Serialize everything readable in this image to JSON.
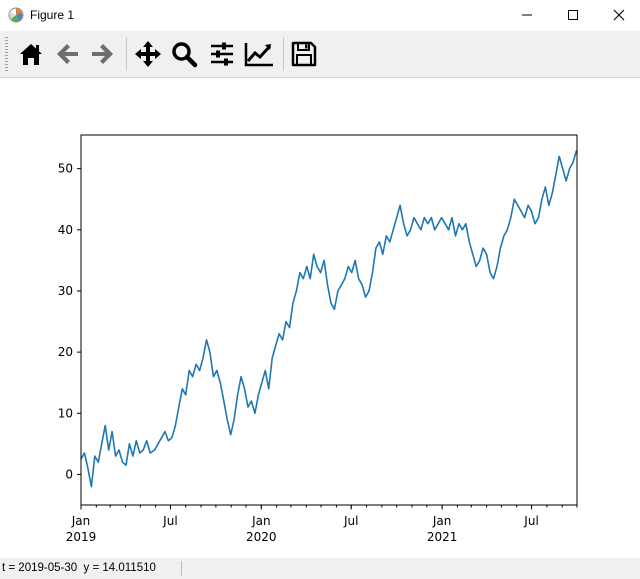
{
  "window": {
    "title": "Figure 1"
  },
  "toolbar": {
    "buttons": [
      {
        "name": "home-button",
        "icon": "home-icon"
      },
      {
        "name": "back-button",
        "icon": "arrow-left-icon"
      },
      {
        "name": "forward-button",
        "icon": "arrow-right-icon"
      },
      {
        "name": "pan-button",
        "icon": "move-icon"
      },
      {
        "name": "zoom-button",
        "icon": "magnifier-icon"
      },
      {
        "name": "subplots-button",
        "icon": "sliders-icon"
      },
      {
        "name": "edit-axes-button",
        "icon": "line-chart-icon"
      },
      {
        "name": "save-button",
        "icon": "floppy-disk-icon"
      }
    ]
  },
  "status": {
    "text": "t = 2019-05-30  y = 14.011510"
  },
  "colors": {
    "line": "#1f77b4",
    "toolbar_bg": "#f0f0f0"
  },
  "chart_data": {
    "type": "line",
    "title": "",
    "xlabel": "",
    "ylabel": "",
    "ylim": [
      -5,
      55.5
    ],
    "xlim": [
      "2019-01-01",
      "2021-10-01"
    ],
    "yticks": [
      0,
      10,
      20,
      30,
      40,
      50
    ],
    "xticks": [
      {
        "date": "2019-01-01",
        "label": "Jan",
        "sublabel": "2019"
      },
      {
        "date": "2019-07-01",
        "label": "Jul",
        "sublabel": ""
      },
      {
        "date": "2020-01-01",
        "label": "Jan",
        "sublabel": "2020"
      },
      {
        "date": "2020-07-01",
        "label": "Jul",
        "sublabel": ""
      },
      {
        "date": "2021-01-01",
        "label": "Jan",
        "sublabel": "2021"
      },
      {
        "date": "2021-07-01",
        "label": "Jul",
        "sublabel": ""
      }
    ],
    "series": [
      {
        "values": [
          [
            "2019-01-01",
            2.5
          ],
          [
            "2019-01-08",
            3.5
          ],
          [
            "2019-01-15",
            1
          ],
          [
            "2019-01-22",
            -2
          ],
          [
            "2019-01-29",
            3
          ],
          [
            "2019-02-05",
            2
          ],
          [
            "2019-02-12",
            5
          ],
          [
            "2019-02-19",
            8
          ],
          [
            "2019-02-26",
            4
          ],
          [
            "2019-03-05",
            7
          ],
          [
            "2019-03-12",
            3
          ],
          [
            "2019-03-19",
            4
          ],
          [
            "2019-03-26",
            2
          ],
          [
            "2019-04-02",
            1.5
          ],
          [
            "2019-04-09",
            5
          ],
          [
            "2019-04-16",
            3
          ],
          [
            "2019-04-23",
            5.5
          ],
          [
            "2019-04-30",
            3.5
          ],
          [
            "2019-05-07",
            4
          ],
          [
            "2019-05-14",
            5.5
          ],
          [
            "2019-05-21",
            3.5
          ],
          [
            "2019-05-30",
            4
          ],
          [
            "2019-06-06",
            5
          ],
          [
            "2019-06-13",
            6
          ],
          [
            "2019-06-20",
            7
          ],
          [
            "2019-06-27",
            5.5
          ],
          [
            "2019-07-04",
            6
          ],
          [
            "2019-07-11",
            8
          ],
          [
            "2019-07-18",
            11
          ],
          [
            "2019-07-25",
            14
          ],
          [
            "2019-08-01",
            13
          ],
          [
            "2019-08-08",
            17
          ],
          [
            "2019-08-15",
            16
          ],
          [
            "2019-08-22",
            18
          ],
          [
            "2019-08-29",
            17
          ],
          [
            "2019-09-05",
            19
          ],
          [
            "2019-09-12",
            22
          ],
          [
            "2019-09-19",
            20
          ],
          [
            "2019-09-26",
            16
          ],
          [
            "2019-10-03",
            17
          ],
          [
            "2019-10-10",
            15
          ],
          [
            "2019-10-17",
            12
          ],
          [
            "2019-10-24",
            9
          ],
          [
            "2019-10-31",
            6.5
          ],
          [
            "2019-11-07",
            9
          ],
          [
            "2019-11-14",
            13
          ],
          [
            "2019-11-21",
            16
          ],
          [
            "2019-11-28",
            14
          ],
          [
            "2019-12-05",
            11
          ],
          [
            "2019-12-12",
            12
          ],
          [
            "2019-12-19",
            10
          ],
          [
            "2019-12-26",
            13
          ],
          [
            "2020-01-02",
            15
          ],
          [
            "2020-01-09",
            17
          ],
          [
            "2020-01-16",
            14
          ],
          [
            "2020-01-23",
            19
          ],
          [
            "2020-01-30",
            21
          ],
          [
            "2020-02-06",
            23
          ],
          [
            "2020-02-13",
            22
          ],
          [
            "2020-02-20",
            25
          ],
          [
            "2020-02-27",
            24
          ],
          [
            "2020-03-05",
            28
          ],
          [
            "2020-03-12",
            30
          ],
          [
            "2020-03-19",
            33
          ],
          [
            "2020-03-26",
            32
          ],
          [
            "2020-04-02",
            34
          ],
          [
            "2020-04-09",
            32
          ],
          [
            "2020-04-16",
            36
          ],
          [
            "2020-04-23",
            34
          ],
          [
            "2020-04-30",
            33
          ],
          [
            "2020-05-07",
            35
          ],
          [
            "2020-05-14",
            31
          ],
          [
            "2020-05-21",
            28
          ],
          [
            "2020-05-28",
            27
          ],
          [
            "2020-06-04",
            30
          ],
          [
            "2020-06-11",
            31
          ],
          [
            "2020-06-18",
            32
          ],
          [
            "2020-06-25",
            34
          ],
          [
            "2020-07-02",
            33
          ],
          [
            "2020-07-09",
            35
          ],
          [
            "2020-07-16",
            32
          ],
          [
            "2020-07-23",
            31
          ],
          [
            "2020-07-30",
            29
          ],
          [
            "2020-08-06",
            30
          ],
          [
            "2020-08-13",
            33
          ],
          [
            "2020-08-20",
            37
          ],
          [
            "2020-08-27",
            38
          ],
          [
            "2020-09-03",
            36
          ],
          [
            "2020-09-10",
            39
          ],
          [
            "2020-09-17",
            38
          ],
          [
            "2020-09-24",
            40
          ],
          [
            "2020-10-01",
            42
          ],
          [
            "2020-10-08",
            44
          ],
          [
            "2020-10-15",
            41
          ],
          [
            "2020-10-22",
            39
          ],
          [
            "2020-10-29",
            40
          ],
          [
            "2020-11-05",
            42
          ],
          [
            "2020-11-12",
            41
          ],
          [
            "2020-11-19",
            40
          ],
          [
            "2020-11-26",
            42
          ],
          [
            "2020-12-03",
            41
          ],
          [
            "2020-12-10",
            42
          ],
          [
            "2020-12-17",
            40
          ],
          [
            "2020-12-24",
            41
          ],
          [
            "2020-12-31",
            42
          ],
          [
            "2021-01-07",
            41
          ],
          [
            "2021-01-14",
            40
          ],
          [
            "2021-01-21",
            42
          ],
          [
            "2021-01-28",
            39
          ],
          [
            "2021-02-04",
            41
          ],
          [
            "2021-02-11",
            40
          ],
          [
            "2021-02-18",
            41
          ],
          [
            "2021-02-25",
            38
          ],
          [
            "2021-03-04",
            36
          ],
          [
            "2021-03-11",
            34
          ],
          [
            "2021-03-18",
            35
          ],
          [
            "2021-03-25",
            37
          ],
          [
            "2021-04-01",
            36
          ],
          [
            "2021-04-08",
            33
          ],
          [
            "2021-04-15",
            32
          ],
          [
            "2021-04-22",
            34
          ],
          [
            "2021-04-29",
            37
          ],
          [
            "2021-05-06",
            39
          ],
          [
            "2021-05-13",
            40
          ],
          [
            "2021-05-20",
            42
          ],
          [
            "2021-05-27",
            45
          ],
          [
            "2021-06-03",
            44
          ],
          [
            "2021-06-10",
            43
          ],
          [
            "2021-06-17",
            42
          ],
          [
            "2021-06-24",
            44
          ],
          [
            "2021-07-01",
            43
          ],
          [
            "2021-07-08",
            41
          ],
          [
            "2021-07-15",
            42
          ],
          [
            "2021-07-22",
            45
          ],
          [
            "2021-07-29",
            47
          ],
          [
            "2021-08-05",
            44
          ],
          [
            "2021-08-12",
            46
          ],
          [
            "2021-08-19",
            49
          ],
          [
            "2021-08-26",
            52
          ],
          [
            "2021-09-02",
            50
          ],
          [
            "2021-09-09",
            48
          ],
          [
            "2021-09-16",
            50
          ],
          [
            "2021-09-23",
            51
          ],
          [
            "2021-09-30",
            53
          ]
        ]
      }
    ]
  }
}
